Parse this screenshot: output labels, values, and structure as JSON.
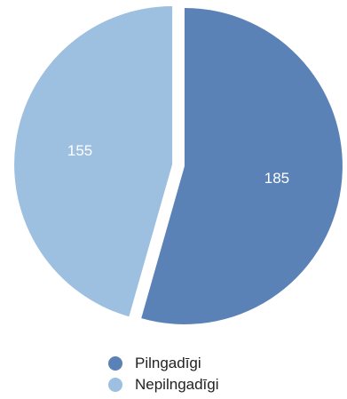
{
  "chart_data": {
    "type": "pie",
    "categories": [
      "Pilngadīgi",
      "Nepilngadīgi"
    ],
    "values": [
      185,
      155
    ],
    "data_labels": [
      "185",
      "155"
    ],
    "colors": [
      "#5b82b6",
      "#9dbfe0"
    ],
    "legend_placement": "bottom",
    "exploded": true
  },
  "legend": {
    "items": [
      {
        "label": "Pilngadīgi",
        "color": "#5b82b6"
      },
      {
        "label": "Nepilngadīgi",
        "color": "#9dbfe0"
      }
    ]
  }
}
